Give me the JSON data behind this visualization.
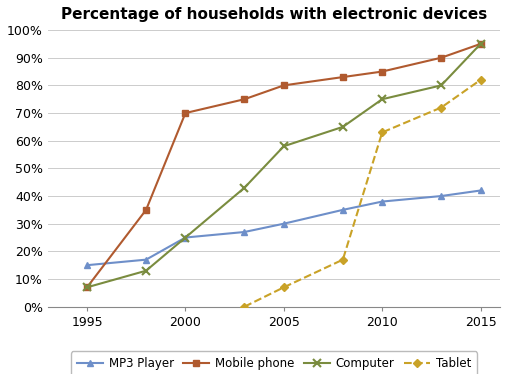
{
  "title": "Percentage of households with electronic devices",
  "years_mp3": [
    1995,
    1998,
    2000,
    2003,
    2005,
    2008,
    2010,
    2013,
    2015
  ],
  "mp3": [
    15,
    17,
    25,
    27,
    30,
    35,
    38,
    40,
    42
  ],
  "years_mobile": [
    1995,
    1998,
    2000,
    2003,
    2005,
    2008,
    2010,
    2013,
    2015
  ],
  "mobile": [
    7,
    35,
    70,
    75,
    80,
    83,
    85,
    90,
    95
  ],
  "years_computer": [
    1995,
    1998,
    2000,
    2003,
    2005,
    2008,
    2010,
    2013,
    2015
  ],
  "computer": [
    7,
    13,
    25,
    43,
    58,
    65,
    75,
    80,
    95
  ],
  "years_tablet": [
    2003,
    2005,
    2008,
    2010,
    2013,
    2015
  ],
  "tablet": [
    0,
    7,
    17,
    63,
    72,
    82
  ],
  "mp3_color": "#6e8fc9",
  "mobile_color": "#b05a2f",
  "computer_color": "#7a8c3f",
  "tablet_color": "#c9a227",
  "ylim": [
    0,
    100
  ],
  "xlim": [
    1993,
    2016
  ],
  "xticks": [
    1995,
    2000,
    2005,
    2010,
    2015
  ],
  "yticks": [
    0,
    10,
    20,
    30,
    40,
    50,
    60,
    70,
    80,
    90,
    100
  ],
  "background_color": "#ffffff",
  "legend_labels": [
    "MP3 Player",
    "Mobile phone",
    "Computer",
    "Tablet"
  ]
}
